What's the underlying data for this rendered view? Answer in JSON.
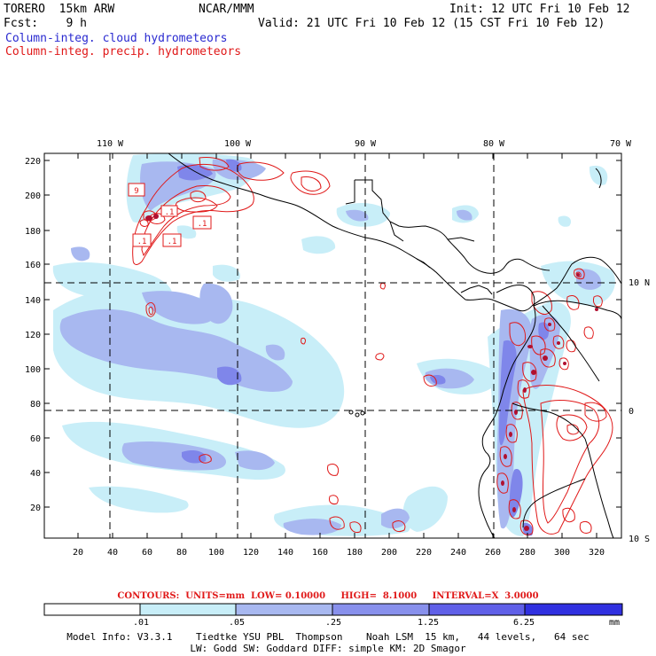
{
  "header": {
    "model": "TORERO  15km ARW",
    "center": "NCAR/MMM",
    "init": "Init: 12 UTC Fri 10 Feb 12",
    "fcst": "Fcst:    9 h",
    "valid": "Valid: 21 UTC Fri 10 Feb 12 (15 CST Fri 10 Feb 12)",
    "field_blue": "Column-integ. cloud hydrometeors",
    "field_red": "Column-integ. precip. hydrometeors"
  },
  "map": {
    "lon_labels": [
      "110 W",
      "100 W",
      "90 W",
      "80 W",
      "70 W"
    ],
    "lat_labels": [
      "10 N",
      "0",
      "10 S"
    ],
    "y_ticks": [
      "220",
      "200",
      "180",
      "160",
      "140",
      "120",
      "100",
      "80",
      "60",
      "40",
      "20"
    ],
    "x_ticks": [
      "20",
      "40",
      "60",
      "80",
      "100",
      "120",
      "140",
      "160",
      "180",
      "200",
      "220",
      "240",
      "260",
      "280",
      "300",
      "320"
    ],
    "contour_labels": [
      "9",
      ".1",
      ".1",
      ".1",
      ".1"
    ]
  },
  "contours_info": {
    "text": "CONTOURS:  UNITS=mm  LOW= 0.10000     HIGH=  8.1000     INTERVAL=X  3.0000"
  },
  "colorbar": {
    "labels": [
      ".01",
      ".05",
      ".25",
      "1.25",
      "6.25"
    ],
    "unit": "mm",
    "colors": [
      "#ffffff",
      "#c8eef8",
      "#a8b8f0",
      "#8890ec",
      "#6060e8",
      "#3030e0"
    ]
  },
  "model_info": {
    "line1": "Model Info: V3.3.1    Tiedtke YSU PBL  Thompson    Noah LSM  15 km,   44 levels,   64 sec",
    "line2": "LW: Godd SW: Goddard DIFF: simple KM: 2D Smagor"
  }
}
